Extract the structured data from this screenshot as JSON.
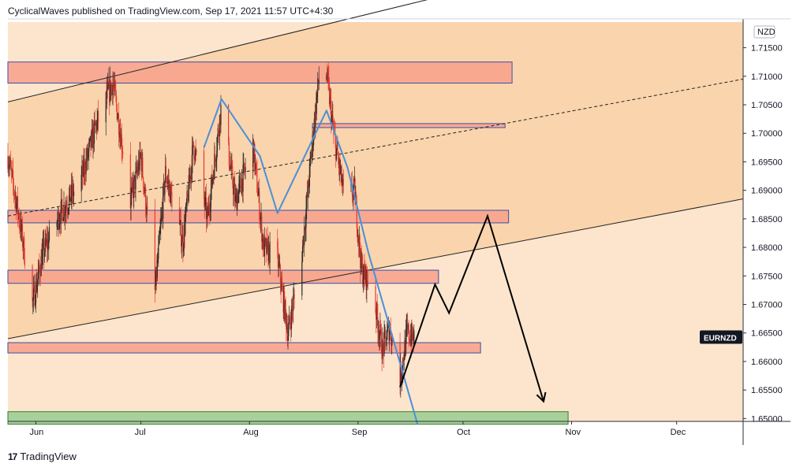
{
  "header": {
    "text": "CyclicalWaves published on TradingView.com, Sep 17, 2021 11:57 UTC+4:30"
  },
  "footer": {
    "brand": "TradingView",
    "logo": "17"
  },
  "colors": {
    "background": "#fce5cc",
    "channel_fill": "#fad4ac",
    "zone_fill": "#f7a08a",
    "zone_border": "#3b4ea8",
    "target_zone_fill": "#a7d09a",
    "candle_up": "#2a2a2a",
    "candle_down": "#e8392f",
    "wave_line": "#4a90d9",
    "projection": "#000000",
    "price_badge_bg": "#131722"
  },
  "chart_data": {
    "type": "candlestick",
    "symbol": "EURNZD",
    "currency_label": "NZD",
    "ylim": [
      1.6495,
      1.7195
    ],
    "y_ticks": [
      "1.71500",
      "1.71000",
      "1.70500",
      "1.70000",
      "1.69500",
      "1.69000",
      "1.68500",
      "1.68000",
      "1.67500",
      "1.67000",
      "1.66500",
      "1.66000",
      "1.65500",
      "1.65000"
    ],
    "x_ticks": [
      "Jun",
      "Jul",
      "Aug",
      "Sep",
      "Oct",
      "Nov",
      "Dec"
    ],
    "x_range": [
      "2021-05-24",
      "2021-12-20"
    ],
    "x_tick_dates": [
      "2021-06-01",
      "2021-07-01",
      "2021-08-01",
      "2021-09-01",
      "2021-10-01",
      "2021-11-01",
      "2021-12-01"
    ],
    "price_data_end": "2021-09-17",
    "price_data_start": "2021-05-24",
    "price_path": [
      [
        "2021-05-24",
        1.696
      ],
      [
        "2021-05-27",
        1.686
      ],
      [
        "2021-05-31",
        1.67
      ],
      [
        "2021-06-03",
        1.679
      ],
      [
        "2021-06-08",
        1.686
      ],
      [
        "2021-06-14",
        1.692
      ],
      [
        "2021-06-18",
        1.701
      ],
      [
        "2021-06-23",
        1.709
      ],
      [
        "2021-06-28",
        1.688
      ],
      [
        "2021-07-01",
        1.696
      ],
      [
        "2021-07-05",
        1.672
      ],
      [
        "2021-07-08",
        1.693
      ],
      [
        "2021-07-13",
        1.681
      ],
      [
        "2021-07-16",
        1.698
      ],
      [
        "2021-07-20",
        1.685
      ],
      [
        "2021-07-24",
        1.705
      ],
      [
        "2021-07-28",
        1.688
      ],
      [
        "2021-08-02",
        1.698
      ],
      [
        "2021-08-05",
        1.68
      ],
      [
        "2021-08-09",
        1.678
      ],
      [
        "2021-08-12",
        1.665
      ],
      [
        "2021-08-16",
        1.679
      ],
      [
        "2021-08-20",
        1.705
      ],
      [
        "2021-08-22",
        1.716
      ],
      [
        "2021-08-25",
        1.7
      ],
      [
        "2021-08-28",
        1.689
      ],
      [
        "2021-08-31",
        1.69
      ],
      [
        "2021-09-02",
        1.676
      ],
      [
        "2021-09-05",
        1.673
      ],
      [
        "2021-09-08",
        1.662
      ],
      [
        "2021-09-10",
        1.666
      ],
      [
        "2021-09-13",
        1.657
      ],
      [
        "2021-09-15",
        1.665
      ],
      [
        "2021-09-17",
        1.664
      ]
    ],
    "zones": [
      {
        "from": "2021-05-24",
        "to": "2021-10-15",
        "y1": 1.7088,
        "y2": 1.7125,
        "type": "resistance"
      },
      {
        "from": "2021-08-19",
        "to": "2021-10-13",
        "y1": 1.701,
        "y2": 1.7017,
        "type": "resistance"
      },
      {
        "from": "2021-05-24",
        "to": "2021-10-14",
        "y1": 1.6843,
        "y2": 1.6865,
        "type": "support"
      },
      {
        "from": "2021-05-24",
        "to": "2021-09-24",
        "y1": 1.6737,
        "y2": 1.676,
        "type": "support"
      },
      {
        "from": "2021-05-24",
        "to": "2021-10-06",
        "y1": 1.6615,
        "y2": 1.6633,
        "type": "support"
      },
      {
        "from": "2021-05-24",
        "to": "2021-10-31",
        "y1": 1.649,
        "y2": 1.6512,
        "type": "target"
      }
    ],
    "channel": {
      "upper": [
        [
          "2021-05-24",
          1.7055
        ],
        [
          "2021-09-28",
          1.7245
        ]
      ],
      "middle": [
        [
          "2021-05-24",
          1.6855
        ],
        [
          "2021-12-20",
          1.7095
        ]
      ],
      "lower": [
        [
          "2021-05-24",
          1.664
        ],
        [
          "2021-12-20",
          1.6885
        ]
      ]
    },
    "wave_line": [
      [
        "2021-07-19",
        1.6975
      ],
      [
        "2021-07-24",
        1.706
      ],
      [
        "2021-08-04",
        1.696
      ],
      [
        "2021-08-09",
        1.686
      ],
      [
        "2021-08-23",
        1.704
      ],
      [
        "2021-08-29",
        1.694
      ],
      [
        "2021-09-02",
        1.684
      ],
      [
        "2021-09-04",
        1.679
      ],
      [
        "2021-09-18",
        1.649
      ]
    ],
    "projection": [
      [
        "2021-09-13",
        1.6555
      ],
      [
        "2021-09-23",
        1.6735
      ],
      [
        "2021-09-27",
        1.6685
      ],
      [
        "2021-10-08",
        1.6855
      ],
      [
        "2021-10-24",
        1.653
      ]
    ],
    "last_price_label": "EURNZD"
  }
}
